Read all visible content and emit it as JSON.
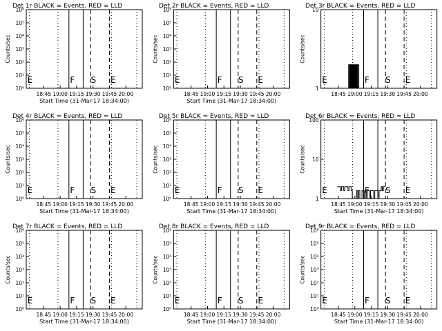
{
  "figure": {
    "panel_titles": [
      "Det 1r BLACK = Events, RED = LLD",
      "Det 2r BLACK = Events, RED = LLD",
      "Det 3r BLACK = Events, RED = LLD",
      "Det 4r BLACK = Events, RED = LLD",
      "Det 5r BLACK = Events, RED = LLD",
      "Det 6r BLACK = Events, RED = LLD",
      "Det 7r BLACK = Events, RED = LLD",
      "Det 8r BLACK = Events, RED = LLD",
      "Det 9r BLACK = Events, RED = LLD"
    ]
  },
  "chart_data": [
    {
      "panel": 1,
      "type": "line",
      "title": "Det 1r BLACK = Events, RED = LLD",
      "xlabel": "Start Time (31-Mar-17 18:34:00)",
      "ylabel": "Counts/sec",
      "yscale": "log",
      "ylim": [
        1,
        1000000
      ],
      "y_tick_labels": [
        "10⁰",
        "10¹",
        "10²",
        "10³",
        "10⁴",
        "10⁵",
        "10⁶"
      ],
      "x_tick_labels": [
        "18:45",
        "19:00",
        "19:15",
        "19:30",
        "19:45",
        "20:00"
      ],
      "x_tick_minutes": [
        11,
        26,
        41,
        56,
        71,
        86
      ],
      "xlim_minutes": [
        -5,
        101
      ],
      "dotted_lines": [
        -2,
        24,
        73,
        96
      ],
      "solid_lines": [
        34,
        47
      ],
      "dashed_lines": [
        54,
        71
      ],
      "markers": [
        {
          "text": "E",
          "at": -4
        },
        {
          "text": "F",
          "at": 35
        },
        {
          "text": "S",
          "at": 54
        },
        {
          "text": "E",
          "at": 72
        }
      ],
      "series": []
    },
    {
      "panel": 2,
      "type": "line",
      "title": "Det 2r BLACK = Events, RED = LLD",
      "xlabel": "Start Time (31-Mar-17 18:34:00)",
      "ylabel": "Counts/sec",
      "yscale": "log",
      "ylim": [
        1,
        1000000
      ],
      "y_tick_labels": [
        "10⁰",
        "10¹",
        "10²",
        "10³",
        "10⁴",
        "10⁵",
        "10⁶"
      ],
      "x_tick_labels": [
        "18:45",
        "19:00",
        "19:15",
        "19:30",
        "19:45",
        "20:00"
      ],
      "x_tick_minutes": [
        11,
        26,
        41,
        56,
        71,
        86
      ],
      "xlim_minutes": [
        -5,
        101
      ],
      "dotted_lines": [
        -2,
        24,
        73,
        96
      ],
      "solid_lines": [
        34,
        47
      ],
      "dashed_lines": [
        54,
        71
      ],
      "markers": [
        {
          "text": "E",
          "at": -4
        },
        {
          "text": "F",
          "at": 35
        },
        {
          "text": "S",
          "at": 54
        },
        {
          "text": "E",
          "at": 72
        }
      ],
      "series": []
    },
    {
      "panel": 3,
      "type": "line",
      "title": "Det 3r BLACK = Events, RED = LLD",
      "xlabel": "",
      "ylabel": "Counts/sec",
      "yscale": "log",
      "ylim": [
        1,
        10
      ],
      "y_tick_labels": [
        "1",
        "10"
      ],
      "x_tick_labels": [
        "18:45",
        "19:00",
        "19:15",
        "19:30",
        "19:45",
        "20:00"
      ],
      "x_tick_minutes": [
        11,
        26,
        41,
        56,
        71,
        86
      ],
      "xlim_minutes": [
        -5,
        101
      ],
      "dotted_lines": [
        -2,
        24,
        73,
        96
      ],
      "solid_lines": [
        34,
        47
      ],
      "dashed_lines": [
        54,
        71
      ],
      "markers": [
        {
          "text": "E",
          "at": -4
        },
        {
          "text": "F",
          "at": 35
        },
        {
          "text": "S",
          "at": 54
        },
        {
          "text": "E",
          "at": 72
        }
      ],
      "series": [
        {
          "type": "events",
          "minutes": [
            20,
            30
          ],
          "values": [
            2,
            1,
            2,
            1,
            2,
            2,
            1,
            2,
            1,
            1,
            2,
            1,
            2,
            2,
            1,
            2,
            1,
            1,
            2,
            1,
            2,
            1,
            1,
            2,
            1,
            2,
            1,
            1,
            1,
            2,
            1
          ]
        }
      ]
    },
    {
      "panel": 4,
      "type": "line",
      "title": "Det 4r BLACK = Events, RED = LLD",
      "xlabel": "Start Time (31-Mar-17 18:34:00)",
      "ylabel": "Counts/sec",
      "yscale": "log",
      "ylim": [
        1,
        1000000
      ],
      "y_tick_labels": [
        "10⁰",
        "10¹",
        "10²",
        "10³",
        "10⁴",
        "10⁵",
        "10⁶"
      ],
      "x_tick_labels": [
        "18:45",
        "19:00",
        "19:15",
        "19:30",
        "19:45",
        "20:00"
      ],
      "x_tick_minutes": [
        11,
        26,
        41,
        56,
        71,
        86
      ],
      "xlim_minutes": [
        -5,
        101
      ],
      "dotted_lines": [
        -2,
        24,
        73,
        96
      ],
      "solid_lines": [
        34,
        47
      ],
      "dashed_lines": [
        54,
        71
      ],
      "markers": [
        {
          "text": "E",
          "at": -4
        },
        {
          "text": "F",
          "at": 35
        },
        {
          "text": "S",
          "at": 54
        },
        {
          "text": "E",
          "at": 72
        }
      ],
      "series": []
    },
    {
      "panel": 5,
      "type": "line",
      "title": "Det 5r BLACK = Events, RED = LLD",
      "xlabel": "Start Time (31-Mar-17 18:34:00)",
      "ylabel": "Counts/sec",
      "yscale": "log",
      "ylim": [
        1,
        1000000
      ],
      "y_tick_labels": [
        "10⁰",
        "10¹",
        "10²",
        "10³",
        "10⁴",
        "10⁵",
        "10⁶"
      ],
      "x_tick_labels": [
        "18:45",
        "19:00",
        "19:15",
        "19:30",
        "19:45",
        "20:00"
      ],
      "x_tick_minutes": [
        11,
        26,
        41,
        56,
        71,
        86
      ],
      "xlim_minutes": [
        -5,
        101
      ],
      "dotted_lines": [
        -2,
        24,
        73,
        96
      ],
      "solid_lines": [
        34,
        47
      ],
      "dashed_lines": [
        54,
        71
      ],
      "markers": [
        {
          "text": "E",
          "at": -4
        },
        {
          "text": "F",
          "at": 35
        },
        {
          "text": "S",
          "at": 54
        },
        {
          "text": "E",
          "at": 72
        }
      ],
      "series": []
    },
    {
      "panel": 6,
      "type": "line",
      "title": "Det 6r BLACK = Events, RED = LLD",
      "xlabel": "Start Time (31-Mar-17 18:34:00)",
      "ylabel": "Counts/sec",
      "yscale": "log",
      "ylim": [
        1,
        100
      ],
      "y_tick_labels": [
        "1",
        "10",
        "100"
      ],
      "x_tick_labels": [
        "18:45",
        "19:00",
        "19:15",
        "19:30",
        "19:45",
        "20:00"
      ],
      "x_tick_minutes": [
        11,
        26,
        41,
        56,
        71,
        86
      ],
      "xlim_minutes": [
        -5,
        101
      ],
      "dotted_lines": [
        -2,
        24,
        73,
        96
      ],
      "solid_lines": [
        34,
        47
      ],
      "dashed_lines": [
        54,
        71
      ],
      "markers": [
        {
          "text": "E",
          "at": -4
        },
        {
          "text": "F",
          "at": 35
        },
        {
          "text": "S",
          "at": 54
        },
        {
          "text": "E",
          "at": 72
        }
      ],
      "series": [
        {
          "type": "events",
          "minutes": [
            10,
            54
          ],
          "values": [
            2,
            2,
            2,
            1.6,
            2,
            2,
            1.6,
            2,
            2,
            2,
            1.6,
            2,
            2,
            1.6,
            1,
            1,
            1,
            1,
            1.6,
            1,
            1.6,
            1,
            1,
            1.6,
            1.6,
            1,
            1.6,
            1,
            1.6,
            1.6,
            1,
            1.6,
            1.6,
            1.6,
            1,
            1.6,
            1.6,
            1.6,
            1,
            1.6,
            1.6,
            2,
            1.6,
            2,
            2
          ]
        }
      ]
    },
    {
      "panel": 7,
      "type": "line",
      "title": "Det 7r BLACK = Events, RED = LLD",
      "xlabel": "Start Time (31-Mar-17 18:34:00)",
      "ylabel": "Counts/sec",
      "yscale": "log",
      "ylim": [
        1,
        1000000
      ],
      "y_tick_labels": [
        "10⁰",
        "10¹",
        "10²",
        "10³",
        "10⁴",
        "10⁵",
        "10⁶"
      ],
      "x_tick_labels": [
        "18:45",
        "19:00",
        "19:15",
        "19:30",
        "19:45",
        "20:00"
      ],
      "x_tick_minutes": [
        11,
        26,
        41,
        56,
        71,
        86
      ],
      "xlim_minutes": [
        -5,
        101
      ],
      "dotted_lines": [
        -2,
        24,
        73,
        96
      ],
      "solid_lines": [
        34,
        47
      ],
      "dashed_lines": [
        54,
        71
      ],
      "markers": [
        {
          "text": "E",
          "at": -4
        },
        {
          "text": "F",
          "at": 35
        },
        {
          "text": "S",
          "at": 54
        },
        {
          "text": "E",
          "at": 72
        }
      ],
      "series": []
    },
    {
      "panel": 8,
      "type": "line",
      "title": "Det 8r BLACK = Events, RED = LLD",
      "xlabel": "Start Time (31-Mar-17 18:34:00)",
      "ylabel": "Counts/sec",
      "yscale": "log",
      "ylim": [
        1,
        1000000
      ],
      "y_tick_labels": [
        "10⁰",
        "10¹",
        "10²",
        "10³",
        "10⁴",
        "10⁵",
        "10⁶"
      ],
      "x_tick_labels": [
        "18:45",
        "19:00",
        "19:15",
        "19:30",
        "19:45",
        "20:00"
      ],
      "x_tick_minutes": [
        11,
        26,
        41,
        56,
        71,
        86
      ],
      "xlim_minutes": [
        -5,
        101
      ],
      "dotted_lines": [
        -2,
        24,
        73,
        96
      ],
      "solid_lines": [
        34,
        47
      ],
      "dashed_lines": [
        54,
        71
      ],
      "markers": [
        {
          "text": "E",
          "at": -4
        },
        {
          "text": "F",
          "at": 35
        },
        {
          "text": "S",
          "at": 54
        },
        {
          "text": "E",
          "at": 72
        }
      ],
      "series": []
    },
    {
      "panel": 9,
      "type": "line",
      "title": "Det 9r BLACK = Events, RED = LLD",
      "xlabel": "Start Time (31-Mar-17 18:34:00)",
      "ylabel": "Counts/sec",
      "yscale": "log",
      "ylim": [
        1,
        1000000
      ],
      "y_tick_labels": [
        "10⁰",
        "10¹",
        "10²",
        "10³",
        "10⁴",
        "10⁵",
        "10⁶"
      ],
      "x_tick_labels": [
        "18:45",
        "19:00",
        "19:15",
        "19:30",
        "19:45",
        "20:00"
      ],
      "x_tick_minutes": [
        11,
        26,
        41,
        56,
        71,
        86
      ],
      "xlim_minutes": [
        -5,
        101
      ],
      "dotted_lines": [
        -2,
        24,
        73,
        96
      ],
      "solid_lines": [
        34,
        47
      ],
      "dashed_lines": [
        54,
        71
      ],
      "markers": [
        {
          "text": "E",
          "at": -4
        },
        {
          "text": "F",
          "at": 35
        },
        {
          "text": "S",
          "at": 54
        },
        {
          "text": "E",
          "at": 72
        }
      ],
      "series": []
    }
  ]
}
